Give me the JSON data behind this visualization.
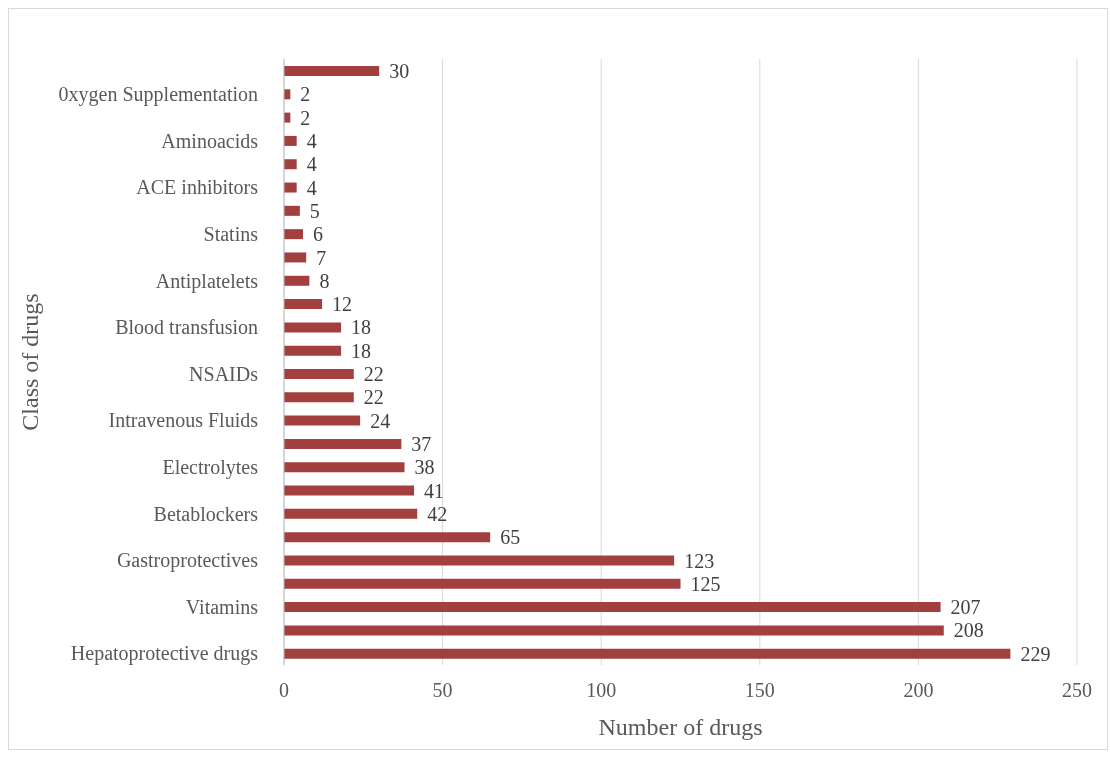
{
  "chart_data": {
    "type": "bar",
    "orientation": "horizontal",
    "xlabel": "Number of drugs",
    "ylabel": "Class of drugs",
    "categories": [
      null,
      "0xygen Supplementation",
      null,
      "Aminoacids",
      null,
      "ACE inhibitors",
      null,
      "Statins",
      null,
      "Antiplatelets",
      null,
      "Blood transfusion",
      null,
      "NSAIDs",
      null,
      "Intravenous Fluids",
      null,
      "Electrolytes",
      null,
      "Betablockers",
      null,
      "Gastroprotectives",
      null,
      "Vitamins",
      null,
      "Hepatoprotective drugs"
    ],
    "values": [
      30,
      2,
      2,
      4,
      4,
      4,
      5,
      6,
      7,
      8,
      12,
      18,
      18,
      22,
      22,
      24,
      37,
      38,
      41,
      42,
      65,
      123,
      125,
      207,
      208,
      229
    ],
    "color": "#a23f3f",
    "xlim": [
      0,
      250
    ],
    "xticks": [
      0,
      50,
      100,
      150,
      200,
      250
    ],
    "grid": "x",
    "data_labels": true,
    "legend": false
  }
}
